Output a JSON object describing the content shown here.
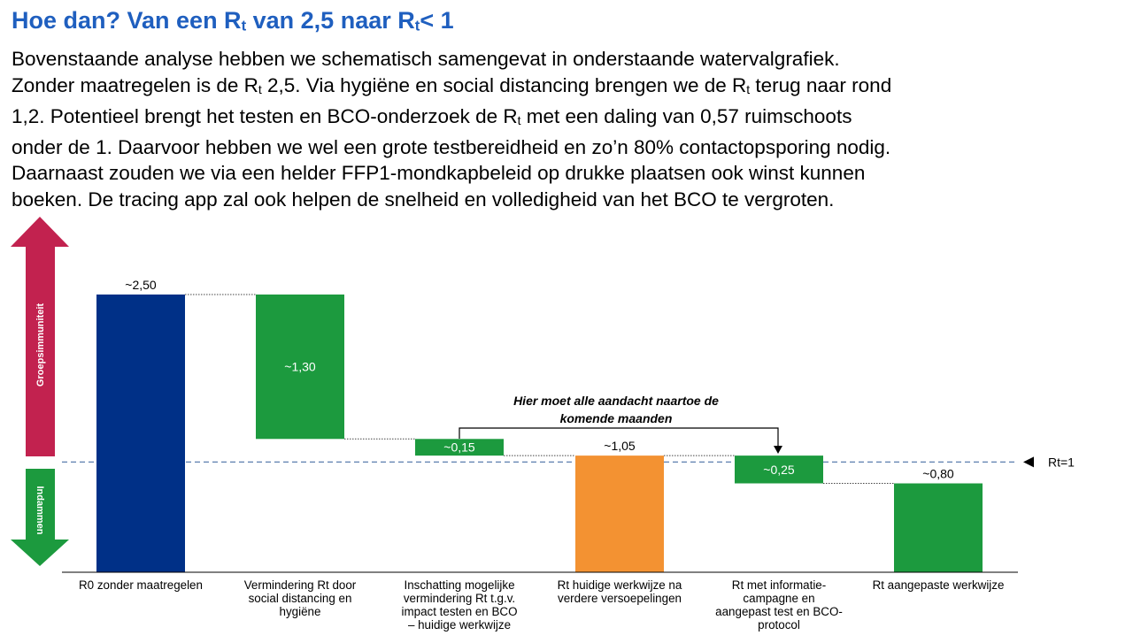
{
  "heading": {
    "part1": "Hoe dan? Van een R",
    "sub1": "t",
    "part2": " van 2,5 naar R",
    "sub2": "t",
    "part3": "< 1"
  },
  "paragraph": [
    [
      "Bovenstaande analyse hebben we schematisch samengevat in onderstaande watervalgrafiek."
    ],
    [
      "Zonder maatregelen is de R",
      "t",
      " 2,5. Via hygiëne en social distancing brengen we de R",
      "t",
      " terug naar rond"
    ],
    [
      "1,2. Potentieel brengt het testen en BCO-onderzoek de R",
      "t",
      " met een daling van 0,57 ruimschoots"
    ],
    [
      "onder de 1. Daarvoor hebben we wel een grote testbereidheid en zo’n 80% contactopsporing nodig."
    ],
    [
      "Daarnaast zouden we via een helder FFP1-mondkapbeleid op drukke plaatsen ook winst kunnen"
    ],
    [
      "boeken. De tracing app zal ook helpen de snelheid en volledigheid van het BCO te vergroten."
    ]
  ],
  "chart_data": {
    "type": "waterfall",
    "title": "",
    "ylim": [
      0,
      2.5
    ],
    "bars": [
      {
        "label": "R0 zonder maatregelen",
        "bottom": 0,
        "top": 2.5,
        "value_label": "~2,50",
        "label_position": "above",
        "color": "#003087"
      },
      {
        "label": "Vermindering Rt door social distancing en hygiëne",
        "bottom": 1.2,
        "top": 2.5,
        "value_label": "~1,30",
        "label_position": "inside",
        "color": "#1c9a3e"
      },
      {
        "label": "Inschatting mogelijke vermindering Rt t.g.v. impact testen en BCO – huidige werkwijze",
        "bottom": 1.05,
        "top": 1.2,
        "value_label": "~0,15",
        "label_position": "inside",
        "color": "#1c9a3e"
      },
      {
        "label": "Rt huidige werkwijze na verdere versoepelingen",
        "bottom": 0,
        "top": 1.05,
        "value_label": "~1,05",
        "label_position": "above",
        "color": "#f39232"
      },
      {
        "label": "Rt met informatie-campagne en aangepast test en BCO-protocol",
        "bottom": 0.8,
        "top": 1.05,
        "value_label": "~0,25",
        "label_position": "inside",
        "color": "#1c9a3e"
      },
      {
        "label": "Rt aangepaste werkwijze",
        "bottom": 0,
        "top": 0.8,
        "value_label": "~0,80",
        "label_position": "above",
        "color": "#1c9a3e"
      }
    ],
    "reference_line": {
      "value": 1,
      "label": "Rt=1",
      "color": "#5b7fae",
      "style": "dashed"
    },
    "annotation": {
      "text_line1": "Hier moet alle aandacht naartoe de",
      "text_line2": "komende maanden"
    },
    "side_arrows": {
      "up": {
        "label": "Groepsimmuniteit",
        "color": "#c2224f"
      },
      "down": {
        "label": "Indammen",
        "color": "#1c9a3e"
      }
    },
    "category_label_lines": [
      [
        "R0 zonder maatregelen"
      ],
      [
        "Vermindering Rt door",
        "social distancing en",
        "hygiëne"
      ],
      [
        "Inschatting mogelijke",
        "vermindering Rt t.g.v.",
        "impact testen en BCO",
        "– huidige werkwijze"
      ],
      [
        "Rt huidige werkwijze na",
        "verdere versoepelingen"
      ],
      [
        "Rt met informatie-",
        "campagne en",
        "aangepast test en BCO-",
        "protocol"
      ],
      [
        "Rt aangepaste werkwijze"
      ]
    ]
  }
}
